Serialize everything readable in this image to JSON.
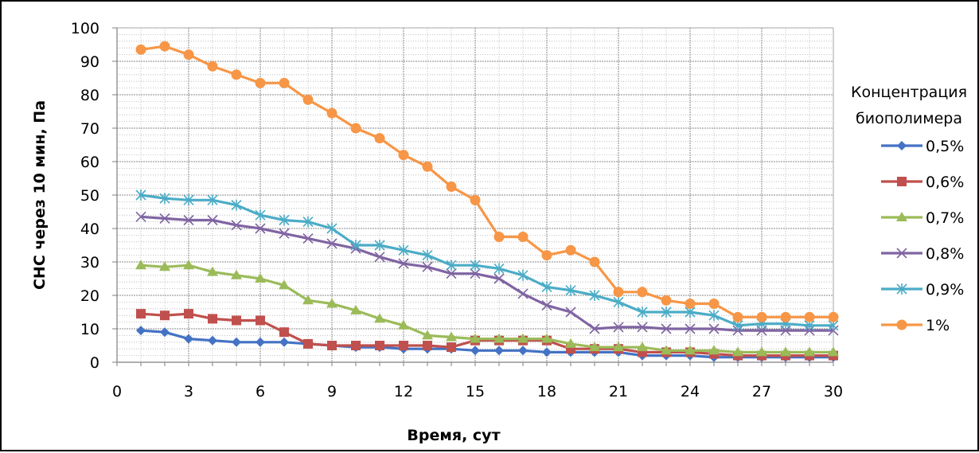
{
  "chart_data": {
    "type": "line",
    "title": "",
    "xlabel": "Время, сут",
    "ylabel": "СНС через 10 мин, Па",
    "xlim": [
      0,
      30
    ],
    "ylim": [
      0,
      100
    ],
    "x_ticks": [
      "0",
      "3",
      "6",
      "9",
      "12",
      "15",
      "18",
      "21",
      "24",
      "27",
      "30"
    ],
    "y_ticks": [
      "0",
      "10",
      "20",
      "30",
      "40",
      "50",
      "60",
      "70",
      "80",
      "90",
      "100"
    ],
    "grid": true,
    "legend_position": "right",
    "legend_title": [
      "Концентрация",
      "биополимера"
    ],
    "x": [
      1,
      2,
      3,
      4,
      5,
      6,
      7,
      8,
      9,
      10,
      11,
      12,
      13,
      14,
      15,
      16,
      17,
      18,
      19,
      20,
      21,
      22,
      23,
      24,
      25,
      26,
      27,
      28,
      29,
      30
    ],
    "series": [
      {
        "name": "0,5%",
        "color": "#4472c4",
        "marker": "diamond",
        "values": [
          9.5,
          9,
          7,
          6.5,
          6,
          6,
          6,
          5.5,
          5,
          4.5,
          4.5,
          4,
          4,
          4,
          3.5,
          3.5,
          3.5,
          3,
          3,
          3,
          3,
          2,
          2,
          2,
          1.5,
          1.5,
          1.5,
          1.5,
          1.5,
          1.5
        ]
      },
      {
        "name": "0,6%",
        "color": "#c0504d",
        "marker": "square",
        "values": [
          14.5,
          14,
          14.5,
          13,
          12.5,
          12.5,
          9,
          5.5,
          5,
          5,
          5,
          5,
          5,
          4.5,
          6.5,
          6.5,
          6.5,
          6.5,
          4,
          4,
          4,
          3,
          3,
          3,
          2.5,
          2,
          2,
          2,
          2,
          2
        ]
      },
      {
        "name": "0,7%",
        "color": "#9bbb59",
        "marker": "triangle",
        "values": [
          29,
          28.5,
          29,
          27,
          26,
          25,
          23,
          18.5,
          17.5,
          15.5,
          13,
          11,
          8,
          7.5,
          7,
          7,
          7,
          7,
          5.5,
          4.5,
          4.5,
          4.5,
          3.5,
          3.5,
          3.5,
          3,
          3,
          3,
          3,
          3
        ]
      },
      {
        "name": "0,8%",
        "color": "#8064a2",
        "marker": "x",
        "values": [
          43.5,
          43,
          42.5,
          42.5,
          41,
          40,
          38.5,
          37,
          35.5,
          34,
          31.5,
          29.5,
          28.5,
          26.5,
          26.5,
          25,
          20.5,
          17,
          15,
          10,
          10.5,
          10.5,
          10,
          10,
          10,
          9.5,
          9.5,
          9.5,
          9.5,
          9.5
        ]
      },
      {
        "name": "0,9%",
        "color": "#4bacc6",
        "marker": "star",
        "values": [
          50,
          49,
          48.5,
          48.5,
          47,
          44,
          42.5,
          42,
          40,
          35,
          35,
          33.5,
          32,
          29,
          29,
          28,
          26,
          22.5,
          21.5,
          20,
          18,
          15,
          15,
          15,
          14,
          11,
          11.5,
          11.5,
          11,
          11
        ]
      },
      {
        "name": "1%",
        "color": "#f79646",
        "marker": "circle",
        "values": [
          93.5,
          94.5,
          92,
          88.5,
          86,
          83.5,
          83.5,
          78.5,
          74.5,
          70,
          67,
          62,
          58.5,
          52.5,
          48.5,
          37.5,
          37.5,
          32,
          33.5,
          30,
          21,
          21,
          18.5,
          17.5,
          17.5,
          13.5,
          13.5,
          13.5,
          13.5,
          13.5
        ]
      }
    ]
  }
}
